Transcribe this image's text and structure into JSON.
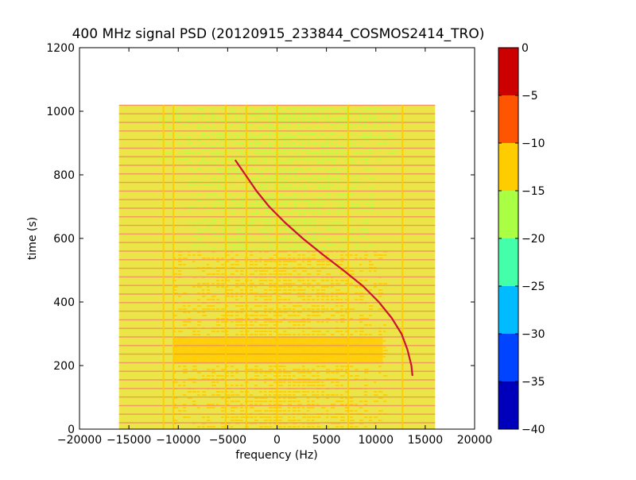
{
  "chart_data": {
    "type": "heatmap",
    "title": "400 MHz signal PSD (20120915_233844_COSMOS2414_TRO)",
    "xlabel": "frequency (Hz)",
    "ylabel": "time (s)",
    "xlim": [
      -20000,
      20000
    ],
    "ylim": [
      0,
      1200
    ],
    "x_ticks": [
      -20000,
      -15000,
      -10000,
      -5000,
      0,
      5000,
      10000,
      15000,
      20000
    ],
    "x_tick_labels": [
      "−20000",
      "−15000",
      "−10000",
      "−5000",
      "0",
      "5000",
      "10000",
      "15000",
      "20000"
    ],
    "y_ticks": [
      0,
      200,
      400,
      600,
      800,
      1000,
      1200
    ],
    "y_tick_labels": [
      "0",
      "200",
      "400",
      "600",
      "800",
      "1000",
      "1200"
    ],
    "grid": false,
    "data_extent": {
      "x": [
        -16000,
        16000
      ],
      "y": [
        0,
        1020
      ]
    },
    "background_level_dB": -12.5,
    "features": {
      "horizontal_stripe_period_s": 27,
      "vertical_lines_Hz": [
        -11500,
        -10500,
        -5200,
        -3100,
        0,
        7200,
        12700
      ],
      "enhanced_band_s": [
        205,
        290
      ],
      "sidelobe_regions": [
        {
          "freq_range_Hz": [
            -12000,
            12000
          ],
          "time_range_s": [
            840,
            1020
          ],
          "level_dB": -17
        },
        {
          "freq_range_Hz": [
            -9000,
            9500
          ],
          "time_range_s": [
            560,
            840
          ],
          "level_dB": -17
        },
        {
          "freq_range_Hz": [
            -10500,
            11000
          ],
          "time_range_s": [
            0,
            560
          ],
          "level_dB": -11
        }
      ],
      "signal_trace": {
        "label": "",
        "level_dB": -1,
        "points": [
          {
            "time_s": 845,
            "freq_Hz": -4200
          },
          {
            "time_s": 800,
            "freq_Hz": -3200
          },
          {
            "time_s": 750,
            "freq_Hz": -2100
          },
          {
            "time_s": 700,
            "freq_Hz": -800
          },
          {
            "time_s": 650,
            "freq_Hz": 800
          },
          {
            "time_s": 600,
            "freq_Hz": 2600
          },
          {
            "time_s": 550,
            "freq_Hz": 4600
          },
          {
            "time_s": 500,
            "freq_Hz": 6700
          },
          {
            "time_s": 450,
            "freq_Hz": 8700
          },
          {
            "time_s": 400,
            "freq_Hz": 10300
          },
          {
            "time_s": 350,
            "freq_Hz": 11600
          },
          {
            "time_s": 300,
            "freq_Hz": 12600
          },
          {
            "time_s": 250,
            "freq_Hz": 13200
          },
          {
            "time_s": 200,
            "freq_Hz": 13600
          },
          {
            "time_s": 170,
            "freq_Hz": 13700
          }
        ]
      }
    },
    "colorbar": {
      "range": [
        -40,
        0
      ],
      "ticks": [
        0,
        -5,
        -10,
        -15,
        -20,
        -25,
        -30,
        -35,
        -40
      ],
      "tick_labels": [
        "0",
        "−5",
        "−10",
        "−15",
        "−20",
        "−25",
        "−30",
        "−35",
        "−40"
      ],
      "bands": [
        {
          "from": -40,
          "to": -35,
          "color": "#0000bb"
        },
        {
          "from": -35,
          "to": -30,
          "color": "#0044ff"
        },
        {
          "from": -30,
          "to": -25,
          "color": "#00bbff"
        },
        {
          "from": -25,
          "to": -20,
          "color": "#44ffaa"
        },
        {
          "from": -20,
          "to": -15,
          "color": "#aaff44"
        },
        {
          "from": -15,
          "to": -10,
          "color": "#ffcc00"
        },
        {
          "from": -10,
          "to": -5,
          "color": "#ff5500"
        },
        {
          "from": -5,
          "to": 0,
          "color": "#cc0000"
        }
      ]
    },
    "colors": {
      "background_field": "#ece548",
      "sidelobe_green": "#b5ff44",
      "sidelobe_yellow": "#ffcc00",
      "stripe": "#f08f62",
      "trace": "#cc1133"
    }
  }
}
